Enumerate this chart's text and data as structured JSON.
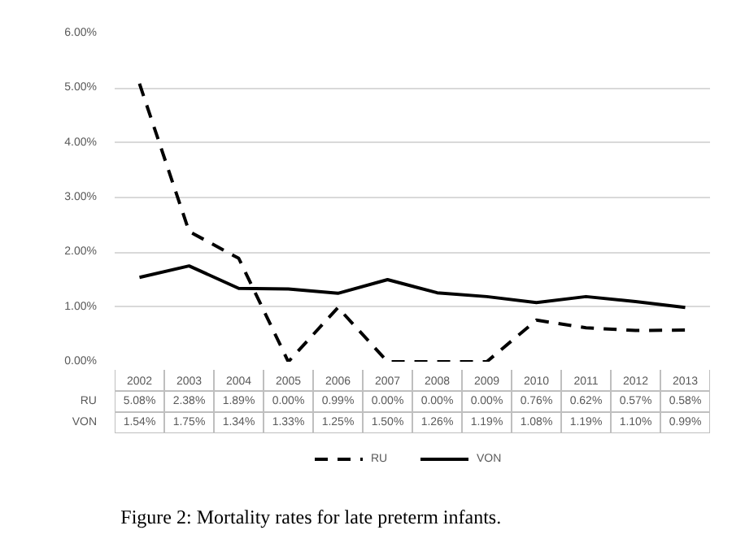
{
  "chart_data": {
    "type": "line",
    "categories": [
      "2002",
      "2003",
      "2004",
      "2005",
      "2006",
      "2007",
      "2008",
      "2009",
      "2010",
      "2011",
      "2012",
      "2013"
    ],
    "series": [
      {
        "name": "RU",
        "color": "#000000",
        "line_style": "dashed",
        "values": [
          5.08,
          2.38,
          1.89,
          0.0,
          0.99,
          0.0,
          0.0,
          0.0,
          0.76,
          0.62,
          0.57,
          0.58
        ],
        "value_labels": [
          "5.08%",
          "2.38%",
          "1.89%",
          "0.00%",
          "0.99%",
          "0.00%",
          "0.00%",
          "0.00%",
          "0.76%",
          "0.62%",
          "0.57%",
          "0.58%"
        ]
      },
      {
        "name": "VON",
        "color": "#000000",
        "line_style": "solid",
        "values": [
          1.54,
          1.75,
          1.34,
          1.33,
          1.25,
          1.5,
          1.26,
          1.19,
          1.08,
          1.19,
          1.1,
          0.99
        ],
        "value_labels": [
          "1.54%",
          "1.75%",
          "1.34%",
          "1.33%",
          "1.25%",
          "1.50%",
          "1.26%",
          "1.19%",
          "1.08%",
          "1.19%",
          "1.10%",
          "0.99%"
        ]
      }
    ],
    "ylim": [
      0,
      6
    ],
    "yticks": [
      {
        "value": 0,
        "label": "0.00%"
      },
      {
        "value": 1,
        "label": "1.00%"
      },
      {
        "value": 2,
        "label": "2.00%"
      },
      {
        "value": 3,
        "label": "3.00%"
      },
      {
        "value": 4,
        "label": "4.00%"
      },
      {
        "value": 5,
        "label": "5.00%"
      },
      {
        "value": 6,
        "label": "6.00%"
      }
    ],
    "grid": "y",
    "legend": "bottom",
    "marker": "none",
    "annotations": [
      "Figure 2: Mortality rates for late preterm infants."
    ]
  }
}
